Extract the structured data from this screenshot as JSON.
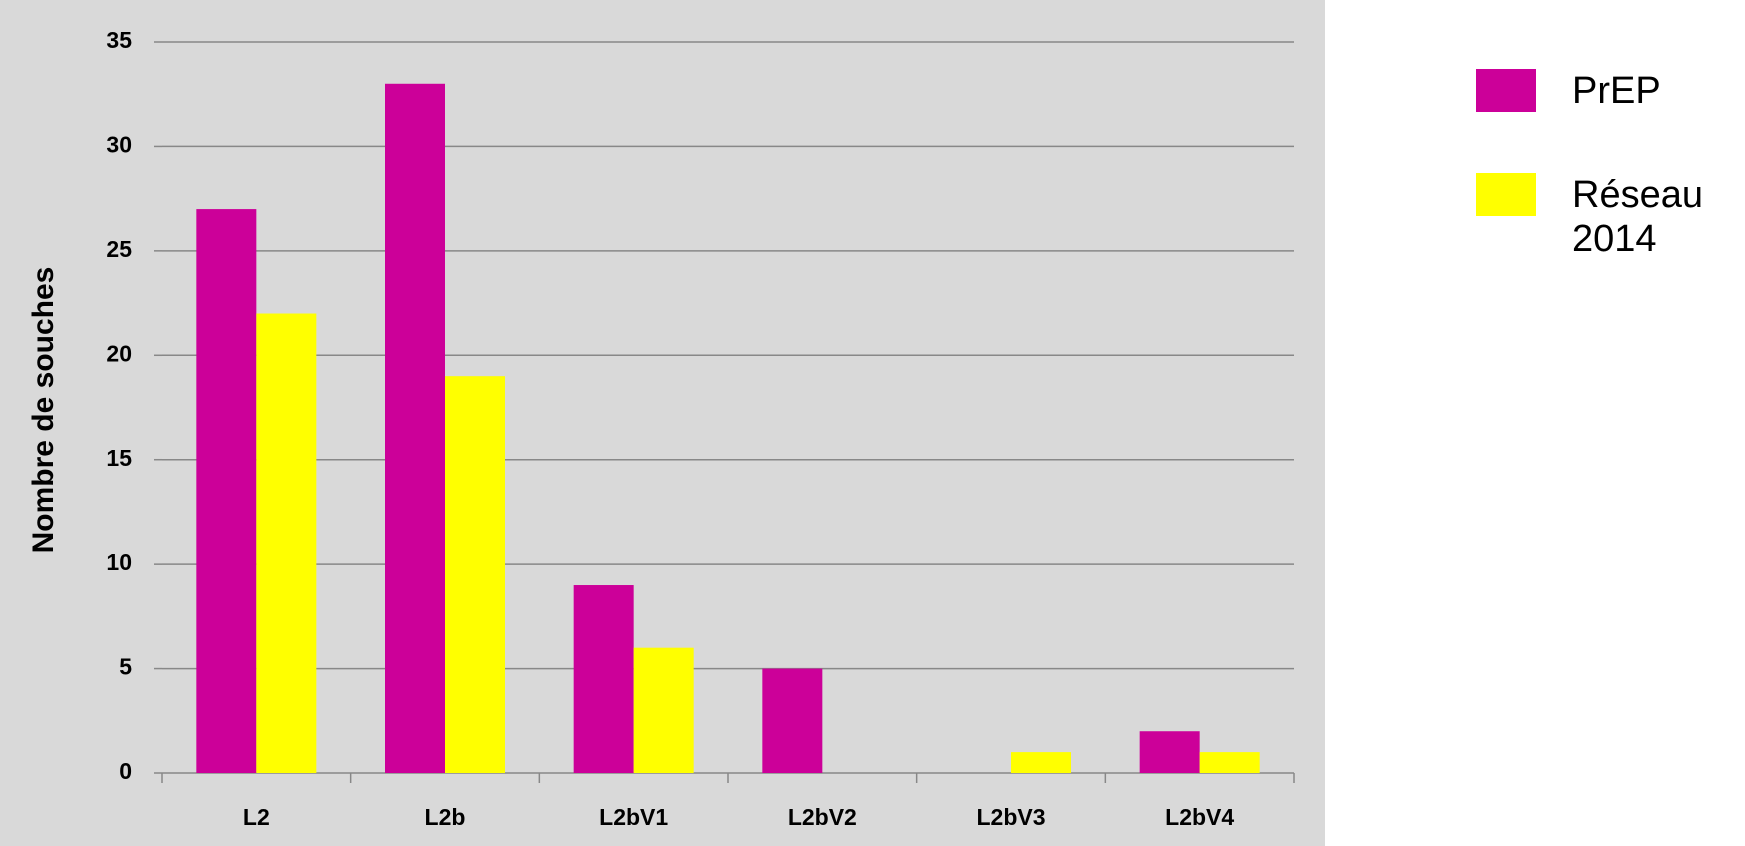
{
  "chart_data": {
    "type": "bar",
    "y_label": "Nombre de souches",
    "categories": [
      "L2",
      "L2b",
      "L2bV1",
      "L2bV2",
      "L2bV3",
      "L2bV4"
    ],
    "series": [
      {
        "name": "PrEP",
        "color": "#cc0099",
        "values": [
          27,
          33,
          9,
          5,
          0,
          2
        ]
      },
      {
        "name": "Réseau 2014",
        "color": "#ffff00",
        "values": [
          22,
          19,
          6,
          0,
          1,
          1
        ]
      }
    ],
    "ylim": [
      0,
      35
    ],
    "yticks": [
      0,
      5,
      10,
      15,
      20,
      25,
      30,
      35
    ],
    "grid": true,
    "legend": "right"
  }
}
